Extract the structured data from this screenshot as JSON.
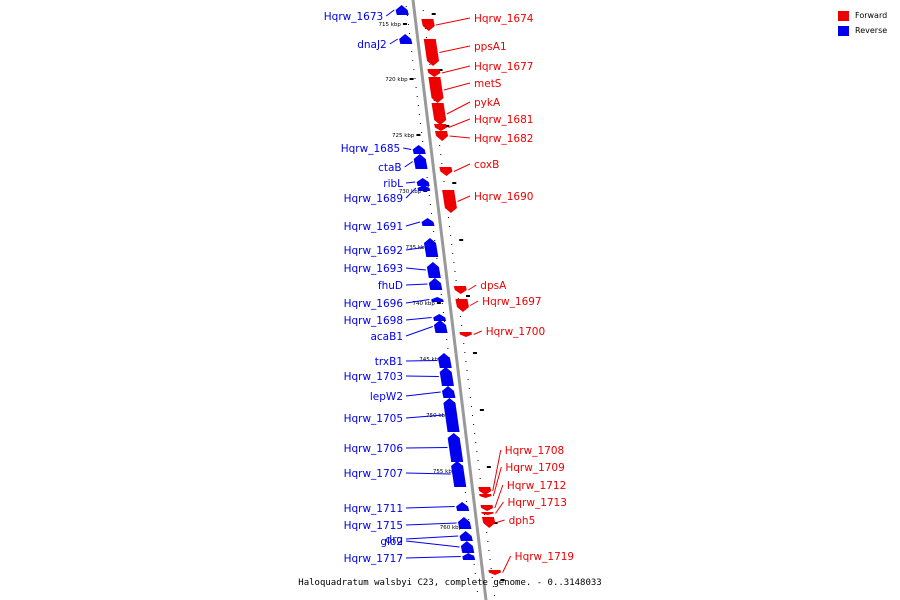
{
  "colors": {
    "forward": "#ee0000",
    "reverse": "#0000ee",
    "backbone": "#999999"
  },
  "legend": [
    {
      "label": "Forward",
      "strand": "forward"
    },
    {
      "label": "Reverse",
      "strand": "reverse"
    }
  ],
  "caption": "Haloquadratum walsbyi C23, complete genome. - 0..3148033",
  "ticks": [
    "715 kbp",
    "720 kbp",
    "725 kbp",
    "730 kbp",
    "735 kbp",
    "740 kbp",
    "745 kbp",
    "750 kbp",
    "755 kbp",
    "760 kbp"
  ],
  "genes": [
    {
      "name": "Hqrw_1673",
      "strand": "reverse"
    },
    {
      "name": "Hqrw_1674",
      "strand": "forward"
    },
    {
      "name": "dnaJ2",
      "strand": "reverse"
    },
    {
      "name": "ppsA1",
      "strand": "forward"
    },
    {
      "name": "Hqrw_1677",
      "strand": "forward"
    },
    {
      "name": "metS",
      "strand": "forward"
    },
    {
      "name": "pykA",
      "strand": "forward"
    },
    {
      "name": "Hqrw_1681",
      "strand": "forward"
    },
    {
      "name": "Hqrw_1682",
      "strand": "forward"
    },
    {
      "name": "Hqrw_1685",
      "strand": "reverse"
    },
    {
      "name": "ctaB",
      "strand": "reverse"
    },
    {
      "name": "coxB",
      "strand": "forward"
    },
    {
      "name": "ribL",
      "strand": "reverse"
    },
    {
      "name": "Hqrw_1689",
      "strand": "reverse"
    },
    {
      "name": "Hqrw_1690",
      "strand": "forward"
    },
    {
      "name": "Hqrw_1691",
      "strand": "reverse"
    },
    {
      "name": "Hqrw_1692",
      "strand": "reverse"
    },
    {
      "name": "Hqrw_1693",
      "strand": "reverse"
    },
    {
      "name": "fhuD",
      "strand": "reverse"
    },
    {
      "name": "dpsA",
      "strand": "forward"
    },
    {
      "name": "Hqrw_1696",
      "strand": "reverse"
    },
    {
      "name": "Hqrw_1697",
      "strand": "forward"
    },
    {
      "name": "Hqrw_1698",
      "strand": "reverse"
    },
    {
      "name": "acaB1",
      "strand": "reverse"
    },
    {
      "name": "Hqrw_1700",
      "strand": "forward"
    },
    {
      "name": "trxB1",
      "strand": "reverse"
    },
    {
      "name": "Hqrw_1703",
      "strand": "reverse"
    },
    {
      "name": "lepW2",
      "strand": "reverse"
    },
    {
      "name": "Hqrw_1705",
      "strand": "reverse"
    },
    {
      "name": "Hqrw_1706",
      "strand": "reverse"
    },
    {
      "name": "Hqrw_1707",
      "strand": "reverse"
    },
    {
      "name": "Hqrw_1708",
      "strand": "forward"
    },
    {
      "name": "Hqrw_1709",
      "strand": "forward"
    },
    {
      "name": "Hqrw_1711",
      "strand": "reverse"
    },
    {
      "name": "Hqrw_1712",
      "strand": "forward"
    },
    {
      "name": "Hqrw_1713",
      "strand": "forward"
    },
    {
      "name": "Hqrw_1715",
      "strand": "reverse"
    },
    {
      "name": "dph5",
      "strand": "forward"
    },
    {
      "name": "drg",
      "strand": "reverse"
    },
    {
      "name": "glo2",
      "strand": "reverse"
    },
    {
      "name": "Hqrw_1717",
      "strand": "reverse"
    },
    {
      "name": "Hqrw_1719",
      "strand": "forward"
    }
  ]
}
